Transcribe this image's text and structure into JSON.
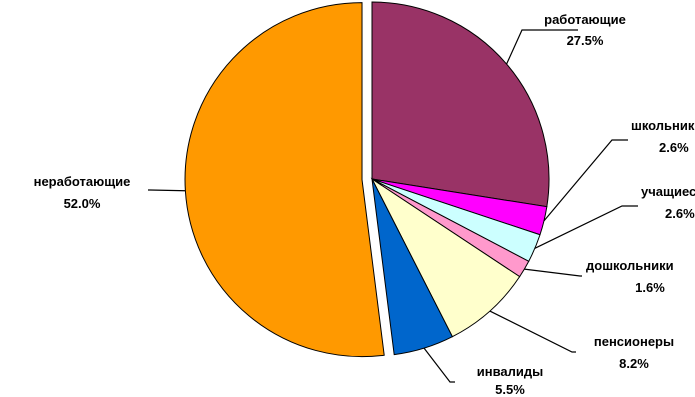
{
  "chart_data": {
    "type": "pie",
    "title": "",
    "slices": [
      {
        "label": "работающие",
        "pct_label": "27.5%",
        "value": 27.5,
        "color": "#993366"
      },
      {
        "label": "школьники",
        "pct_label": "2.6%",
        "value": 2.6,
        "color": "#FF00FF"
      },
      {
        "label": "учащиеся",
        "pct_label": "2.6%",
        "value": 2.6,
        "color": "#CCFFFF"
      },
      {
        "label": "дошкольники",
        "pct_label": "1.6%",
        "value": 1.6,
        "color": "#FF99CC"
      },
      {
        "label": "пенсионеры",
        "pct_label": "8.2%",
        "value": 8.2,
        "color": "#FFFFCC"
      },
      {
        "label": "инвалиды",
        "pct_label": "5.5%",
        "value": 5.5,
        "color": "#0066CC"
      },
      {
        "label": "неработающие",
        "pct_label": "52.0%",
        "value": 52.0,
        "color": "#FF9900",
        "exploded": true
      }
    ]
  }
}
